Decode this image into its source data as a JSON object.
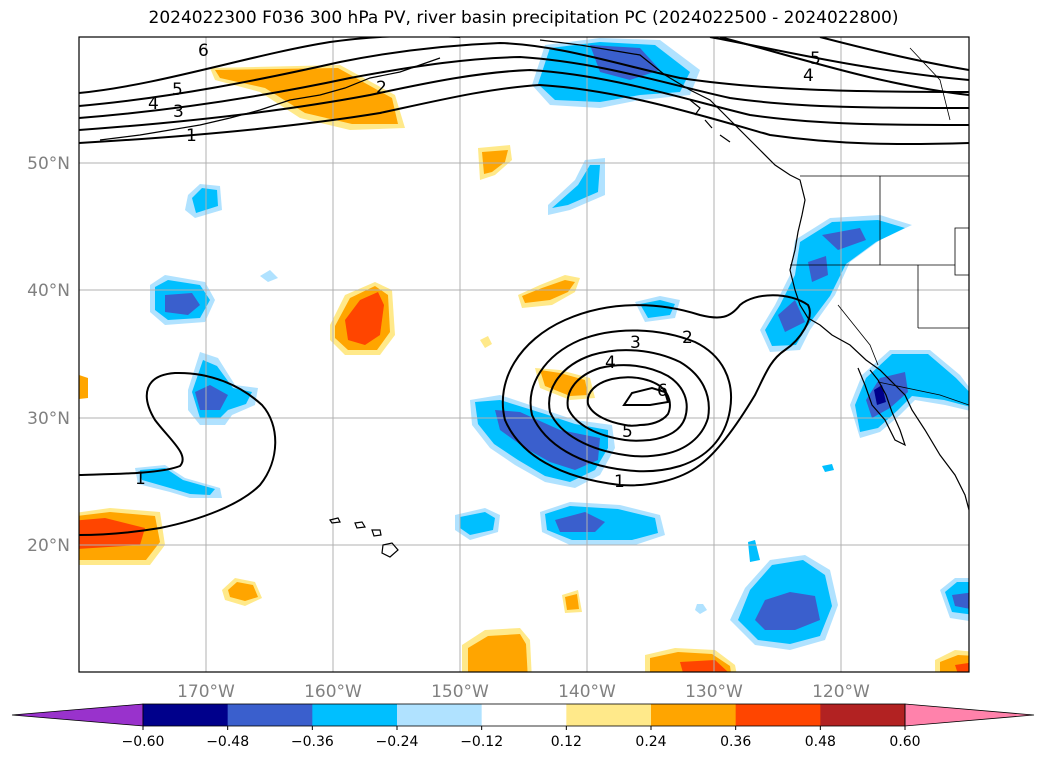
{
  "title": "2024022300 F036 300 hPa PV, river basin precipitation PC (2024022500 - 2024022800)",
  "map": {
    "lon_range": [
      -180,
      -110
    ],
    "lat_range": [
      10,
      60
    ],
    "lon_ticks": [
      "170°W",
      "160°W",
      "150°W",
      "140°W",
      "130°W",
      "120°W"
    ],
    "lat_ticks": [
      "50°N",
      "40°N",
      "30°N",
      "20°N"
    ],
    "gridlines": true,
    "layers": [
      "300 hPa PV contours",
      "river basin precipitation PC shading",
      "coastlines",
      "US state borders"
    ]
  },
  "pv_contour_labels": [
    "6",
    "5",
    "4",
    "3",
    "2",
    "1",
    "5",
    "4",
    "3",
    "4",
    "2",
    "6",
    "5",
    "1",
    "1"
  ],
  "colorbar": {
    "ticks": [
      "−0.60",
      "−0.48",
      "−0.36",
      "−0.24",
      "−0.12",
      "0.12",
      "0.24",
      "0.36",
      "0.48",
      "0.60"
    ],
    "colors": [
      "#9932cc",
      "#00008b",
      "#3a5fcd",
      "#00bfff",
      "#b0e2ff",
      "#ffffff",
      "#ffe98a",
      "#ffa500",
      "#ff4500",
      "#b22222",
      "#ff82ab"
    ],
    "extend": "both"
  }
}
